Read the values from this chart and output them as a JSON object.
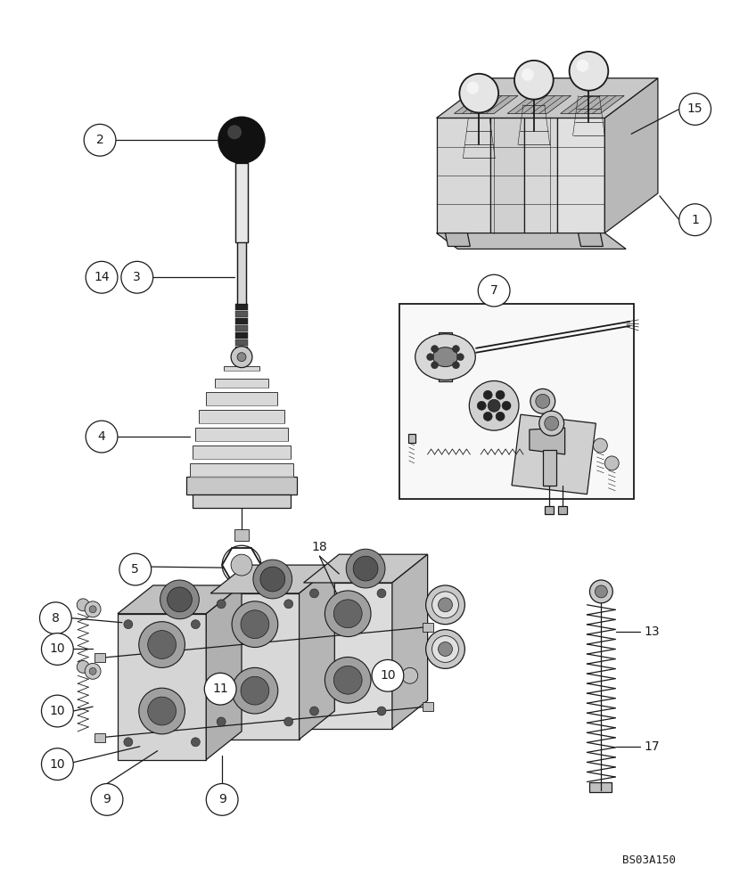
{
  "background_color": "#ffffff",
  "image_ref": "BS03A150",
  "figsize": [
    8.48,
    10.0
  ],
  "dpi": 100,
  "line_color": "#1a1a1a",
  "label_color": "#1a1a1a",
  "fill_light": "#e8e8e8",
  "fill_mid": "#c8c8c8",
  "fill_dark": "#a8a8a8"
}
